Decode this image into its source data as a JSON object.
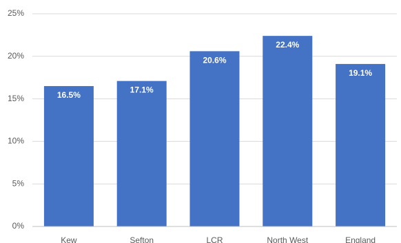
{
  "chart_data": {
    "type": "bar",
    "title": "",
    "xlabel": "",
    "ylabel": "",
    "categories": [
      "Kew",
      "Sefton",
      "LCR",
      "North West",
      "England"
    ],
    "values": [
      16.5,
      17.1,
      20.6,
      22.4,
      19.1
    ],
    "data_labels": [
      "16.5%",
      "17.1%",
      "20.6%",
      "22.4%",
      "19.1%"
    ],
    "ylim": [
      0,
      25
    ],
    "y_ticks": [
      0,
      5,
      10,
      15,
      20,
      25
    ],
    "y_tick_labels": [
      "0%",
      "5%",
      "10%",
      "15%",
      "20%",
      "25%"
    ],
    "grid": true,
    "legend": "none",
    "bar_color": "#4472c4",
    "label_color": "#ffffff"
  }
}
